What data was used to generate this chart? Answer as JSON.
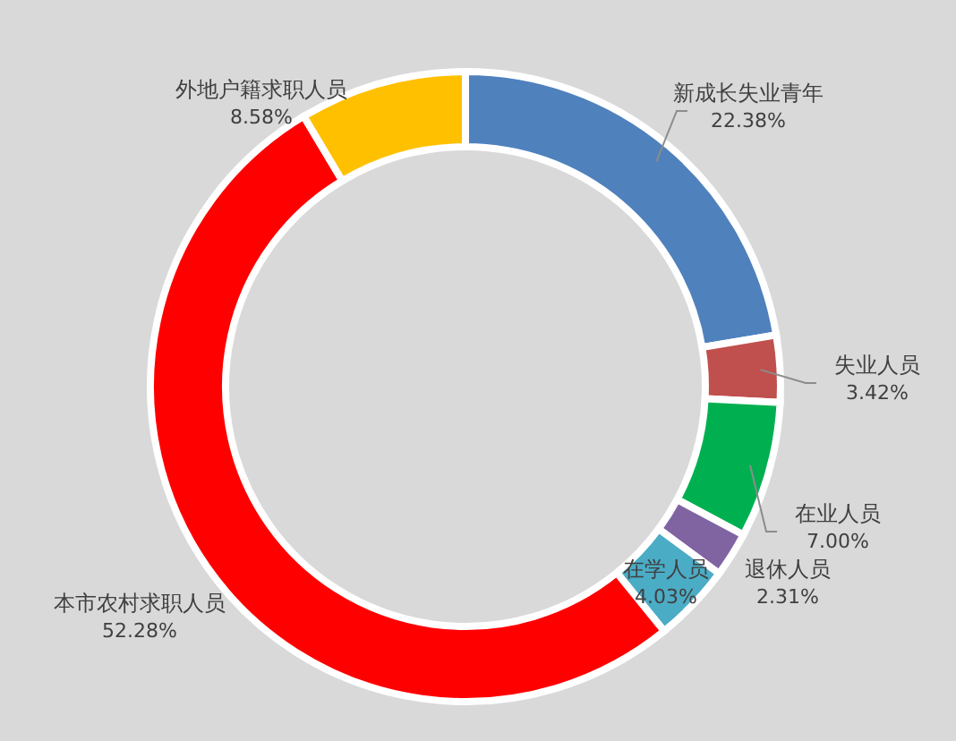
{
  "chart_data": {
    "type": "donut",
    "categories": [
      "新成长失业青年",
      "失业人员",
      "在业人员",
      "退休人员",
      "在学人员",
      "本市农村求职人员",
      "外地户籍求职人员"
    ],
    "values": [
      22.38,
      3.42,
      7.0,
      2.31,
      4.03,
      52.28,
      8.58
    ],
    "value_labels": [
      "22.38%",
      "3.42%",
      "7.00%",
      "2.31%",
      "4.03%",
      "52.28%",
      "8.58%"
    ],
    "colors": [
      "#4f81bd",
      "#c0504d",
      "#00b050",
      "#8064a2",
      "#4bacc6",
      "#ff0000",
      "#ffc000"
    ]
  }
}
